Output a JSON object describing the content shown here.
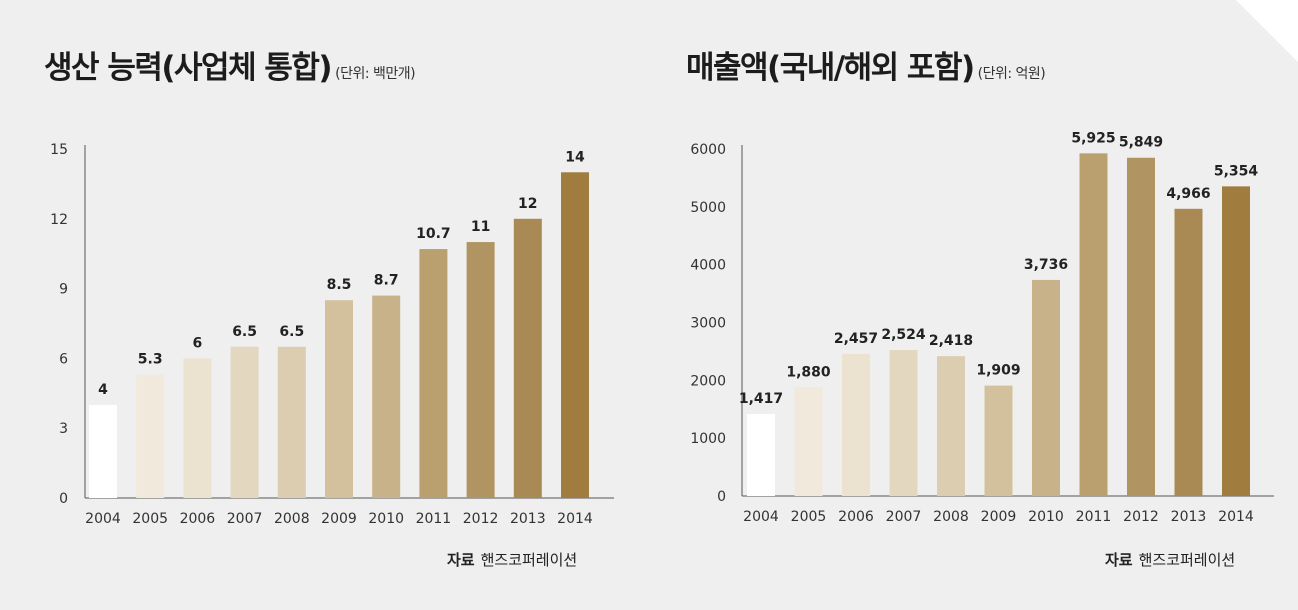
{
  "chart_data": [
    {
      "type": "bar",
      "title": "생산 능력(사업체 통합)",
      "unit": "(단위: 백만개)",
      "categories": [
        "2004",
        "2005",
        "2006",
        "2007",
        "2008",
        "2009",
        "2010",
        "2011",
        "2012",
        "2013",
        "2014"
      ],
      "values": [
        4,
        5.3,
        6,
        6.5,
        6.5,
        8.5,
        8.7,
        10.7,
        11,
        12,
        14
      ],
      "value_labels": [
        "4",
        "5.3",
        "6",
        "6.5",
        "6.5",
        "8.5",
        "8.7",
        "10.7",
        "11",
        "12",
        "14"
      ],
      "ylim": [
        0,
        15
      ],
      "yticks": [
        "0",
        "3",
        "6",
        "9",
        "12",
        "15"
      ],
      "source_label": "자료",
      "source_text": "핸즈코퍼레이션",
      "colors": [
        "#ffffff",
        "#f1e9db",
        "#ece2d0",
        "#e4d7bf",
        "#dcccb0",
        "#d3c09d",
        "#c8b28a",
        "#baa06e",
        "#b09462",
        "#a98a55",
        "#a07d3e"
      ]
    },
    {
      "type": "bar",
      "title": "매출액(국내/해외 포함)",
      "unit": "(단위: 억원)",
      "categories": [
        "2004",
        "2005",
        "2006",
        "2007",
        "2008",
        "2009",
        "2010",
        "2011",
        "2012",
        "2013",
        "2014"
      ],
      "values": [
        1417,
        1880,
        2457,
        2524,
        2418,
        1909,
        3736,
        5925,
        5849,
        4966,
        5354
      ],
      "value_labels": [
        "1,417",
        "1,880",
        "2,457",
        "2,524",
        "2,418",
        "1,909",
        "3,736",
        "5,925",
        "5,849",
        "4,966",
        "5,354"
      ],
      "ylim": [
        0,
        6000
      ],
      "yticks": [
        "0",
        "1000",
        "2000",
        "3000",
        "4000",
        "5000",
        "6000"
      ],
      "source_label": "자료",
      "source_text": "핸즈코퍼레이션",
      "colors": [
        "#ffffff",
        "#f1e9db",
        "#ece2d0",
        "#e4d7bf",
        "#dcccb0",
        "#d3c09d",
        "#c8b28a",
        "#baa06e",
        "#b09462",
        "#a98a55",
        "#a07d3e"
      ]
    }
  ]
}
